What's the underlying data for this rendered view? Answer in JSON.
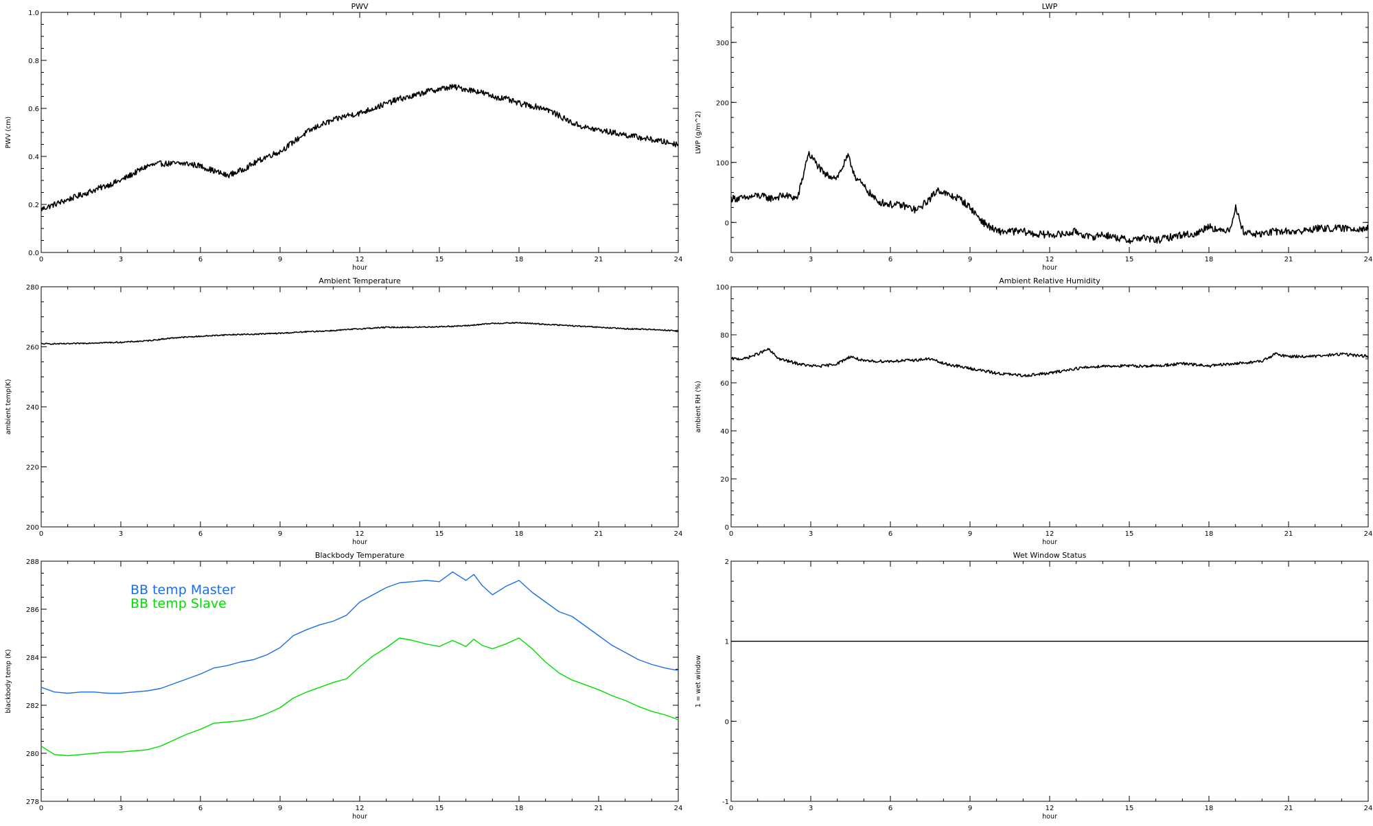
{
  "chart_data": [
    {
      "id": "pwv",
      "type": "line",
      "title": "PWV",
      "xlabel": "hour",
      "ylabel": "PWV (cm)",
      "xlim": [
        0,
        24
      ],
      "ylim": [
        0,
        1.0
      ],
      "xticks": [
        "0",
        "3",
        "6",
        "9",
        "12",
        "15",
        "18",
        "21",
        "24"
      ],
      "yticks": [
        "0.0",
        "0.2",
        "0.4",
        "0.6",
        "0.8",
        "1.0"
      ],
      "noise": 0.012,
      "series": [
        {
          "color": "#000000",
          "x": [
            0,
            0.5,
            1,
            1.5,
            2,
            2.5,
            3,
            3.5,
            4,
            4.5,
            5,
            5.5,
            6,
            6.5,
            7,
            7.5,
            8,
            8.5,
            9,
            9.5,
            10,
            10.5,
            11,
            11.5,
            12,
            12.5,
            13,
            13.5,
            14,
            14.5,
            15,
            15.5,
            16,
            16.5,
            17,
            17.5,
            18,
            18.5,
            19,
            19.5,
            20,
            20.5,
            21,
            21.5,
            22,
            22.5,
            23,
            23.5,
            24
          ],
          "y": [
            0.18,
            0.2,
            0.22,
            0.24,
            0.26,
            0.28,
            0.3,
            0.33,
            0.36,
            0.37,
            0.37,
            0.37,
            0.36,
            0.34,
            0.32,
            0.34,
            0.37,
            0.4,
            0.42,
            0.46,
            0.5,
            0.53,
            0.55,
            0.57,
            0.58,
            0.6,
            0.62,
            0.64,
            0.65,
            0.67,
            0.68,
            0.69,
            0.68,
            0.67,
            0.65,
            0.64,
            0.62,
            0.61,
            0.6,
            0.57,
            0.54,
            0.52,
            0.51,
            0.5,
            0.49,
            0.48,
            0.47,
            0.46,
            0.45
          ]
        }
      ]
    },
    {
      "id": "lwp",
      "type": "line",
      "title": "LWP",
      "xlabel": "hour",
      "ylabel": "LWP (g/m^2)",
      "xlim": [
        0,
        24
      ],
      "ylim": [
        -50,
        350
      ],
      "xticks": [
        "0",
        "3",
        "6",
        "9",
        "12",
        "15",
        "18",
        "21",
        "24"
      ],
      "yticks": [
        "0",
        "100",
        "200",
        "300"
      ],
      "noise": 6,
      "series": [
        {
          "color": "#000000",
          "x": [
            0,
            0.5,
            1,
            1.5,
            2,
            2.5,
            2.7,
            2.9,
            3.1,
            3.5,
            4,
            4.4,
            4.7,
            5,
            5.5,
            6,
            6.5,
            7,
            7.5,
            7.8,
            8.2,
            8.6,
            9,
            9.5,
            10,
            10.5,
            11,
            11.5,
            12,
            12.5,
            13,
            13.5,
            14,
            14.5,
            15,
            15.5,
            16,
            16.5,
            17,
            17.5,
            18,
            18.4,
            18.8,
            19,
            19.3,
            19.8,
            20.5,
            21,
            21.5,
            22,
            22.5,
            23,
            23.5,
            24
          ],
          "y": [
            40,
            40,
            45,
            40,
            45,
            40,
            75,
            115,
            105,
            80,
            75,
            110,
            75,
            60,
            35,
            30,
            28,
            20,
            40,
            55,
            45,
            40,
            25,
            0,
            -15,
            -15,
            -15,
            -20,
            -20,
            -20,
            -15,
            -25,
            -20,
            -25,
            -30,
            -25,
            -30,
            -25,
            -20,
            -20,
            -5,
            -15,
            -10,
            25,
            -15,
            -20,
            -15,
            -15,
            -15,
            -10,
            -10,
            -10,
            -10,
            -10
          ]
        }
      ]
    },
    {
      "id": "temp",
      "type": "line",
      "title": "Ambient Temperature",
      "xlabel": "hour",
      "ylabel": "ambient temp(K)",
      "xlim": [
        0,
        24
      ],
      "ylim": [
        200,
        280
      ],
      "xticks": [
        "0",
        "3",
        "6",
        "9",
        "12",
        "15",
        "18",
        "21",
        "24"
      ],
      "yticks": [
        "200",
        "220",
        "240",
        "260",
        "280"
      ],
      "noise": 0.2,
      "series": [
        {
          "color": "#000000",
          "x": [
            0,
            1,
            2,
            3,
            4,
            5,
            6,
            7,
            8,
            9,
            10,
            11,
            12,
            13,
            14,
            15,
            16,
            17,
            18,
            19,
            20,
            21,
            22,
            23,
            24
          ],
          "y": [
            261,
            261,
            261.3,
            261.5,
            262,
            263,
            263.5,
            264,
            264.2,
            264.5,
            265,
            265.4,
            266,
            266.5,
            266.5,
            266.7,
            267,
            267.8,
            268,
            267.5,
            267,
            266.5,
            266,
            265.8,
            265.3
          ]
        }
      ]
    },
    {
      "id": "rh",
      "type": "line",
      "title": "Ambient Relative Humidity",
      "xlabel": "hour",
      "ylabel": "ambient RH (%)",
      "xlim": [
        0,
        24
      ],
      "ylim": [
        0,
        100
      ],
      "xticks": [
        "0",
        "3",
        "6",
        "9",
        "12",
        "15",
        "18",
        "21",
        "24"
      ],
      "yticks": [
        "0",
        "20",
        "40",
        "60",
        "80",
        "100"
      ],
      "noise": 0.6,
      "series": [
        {
          "color": "#000000",
          "x": [
            0,
            0.5,
            1,
            1.4,
            1.8,
            2.5,
            3,
            3.5,
            4,
            4.5,
            5,
            6,
            7,
            7.5,
            8,
            9,
            10,
            11,
            12,
            13,
            14,
            15,
            16,
            17,
            18,
            19,
            20,
            20.5,
            21,
            22,
            23,
            24
          ],
          "y": [
            70,
            70,
            72,
            74,
            70,
            68,
            67,
            67,
            68,
            71,
            69,
            69,
            69.5,
            70,
            68,
            66,
            64,
            63,
            64,
            66,
            67,
            67,
            67,
            68,
            67,
            68,
            69,
            72,
            71,
            71,
            72,
            71
          ]
        }
      ]
    },
    {
      "id": "bb",
      "type": "line",
      "title": "Blackbody Temperature",
      "xlabel": "hour",
      "ylabel": "blackbody temp (K)",
      "xlim": [
        0,
        24
      ],
      "ylim": [
        278,
        288
      ],
      "xticks": [
        "0",
        "3",
        "6",
        "9",
        "12",
        "15",
        "18",
        "21",
        "24"
      ],
      "yticks": [
        "278",
        "280",
        "282",
        "284",
        "286",
        "288"
      ],
      "noise": 0,
      "legend_position": "upper-left",
      "series": [
        {
          "name": "BB temp Master",
          "color": "#1a6ee6",
          "x": [
            0,
            0.5,
            1,
            1.5,
            2,
            2.5,
            3,
            3.5,
            4,
            4.5,
            5,
            5.5,
            6,
            6.5,
            7,
            7.5,
            8,
            8.5,
            9,
            9.5,
            10,
            10.5,
            11,
            11.5,
            12,
            12.5,
            13,
            13.5,
            14,
            14.5,
            15,
            15.5,
            16,
            16.3,
            16.6,
            17,
            17.5,
            18,
            18.5,
            19,
            19.5,
            20,
            20.5,
            21,
            21.5,
            22,
            22.5,
            23,
            23.5,
            24
          ],
          "y": [
            282.75,
            282.55,
            282.5,
            282.55,
            282.55,
            282.5,
            282.5,
            282.55,
            282.6,
            282.7,
            282.9,
            283.1,
            283.3,
            283.55,
            283.65,
            283.8,
            283.9,
            284.1,
            284.4,
            284.9,
            285.15,
            285.35,
            285.5,
            285.75,
            286.3,
            286.6,
            286.9,
            287.1,
            287.15,
            287.2,
            287.15,
            287.55,
            287.2,
            287.45,
            287.0,
            286.6,
            286.95,
            287.2,
            286.7,
            286.3,
            285.9,
            285.7,
            285.3,
            284.9,
            284.5,
            284.2,
            283.9,
            283.7,
            283.55,
            283.45
          ]
        },
        {
          "name": "BB temp Slave",
          "color": "#00dd00",
          "x": [
            0,
            0.5,
            1,
            1.5,
            2,
            2.5,
            3,
            3.5,
            4,
            4.5,
            5,
            5.5,
            6,
            6.5,
            7,
            7.5,
            8,
            8.5,
            9,
            9.5,
            10,
            10.5,
            11,
            11.5,
            12,
            12.5,
            13,
            13.5,
            14,
            14.5,
            15,
            15.5,
            16,
            16.3,
            16.6,
            17,
            17.5,
            18,
            18.5,
            19,
            19.5,
            20,
            20.5,
            21,
            21.5,
            22,
            22.5,
            23,
            23.5,
            24
          ],
          "y": [
            280.3,
            279.95,
            279.9,
            279.95,
            280.0,
            280.05,
            280.05,
            280.1,
            280.15,
            280.3,
            280.55,
            280.8,
            281.0,
            281.25,
            281.3,
            281.35,
            281.45,
            281.65,
            281.9,
            282.3,
            282.55,
            282.75,
            282.95,
            283.1,
            283.6,
            284.05,
            284.4,
            284.8,
            284.7,
            284.55,
            284.45,
            284.7,
            284.45,
            284.75,
            284.5,
            284.35,
            284.55,
            284.8,
            284.35,
            283.8,
            283.35,
            283.05,
            282.85,
            282.65,
            282.4,
            282.2,
            281.95,
            281.75,
            281.6,
            281.4
          ]
        }
      ]
    },
    {
      "id": "wet",
      "type": "line",
      "title": "Wet Window Status",
      "xlabel": "hour",
      "ylabel": "1 = wet window",
      "xlim": [
        0,
        24
      ],
      "ylim": [
        -1,
        2
      ],
      "xticks": [
        "0",
        "3",
        "6",
        "9",
        "12",
        "15",
        "18",
        "21",
        "24"
      ],
      "yticks": [
        "-1",
        "0",
        "1",
        "2"
      ],
      "noise": 0,
      "series": [
        {
          "color": "#000000",
          "x": [
            0,
            24
          ],
          "y": [
            1,
            1
          ]
        }
      ]
    }
  ]
}
